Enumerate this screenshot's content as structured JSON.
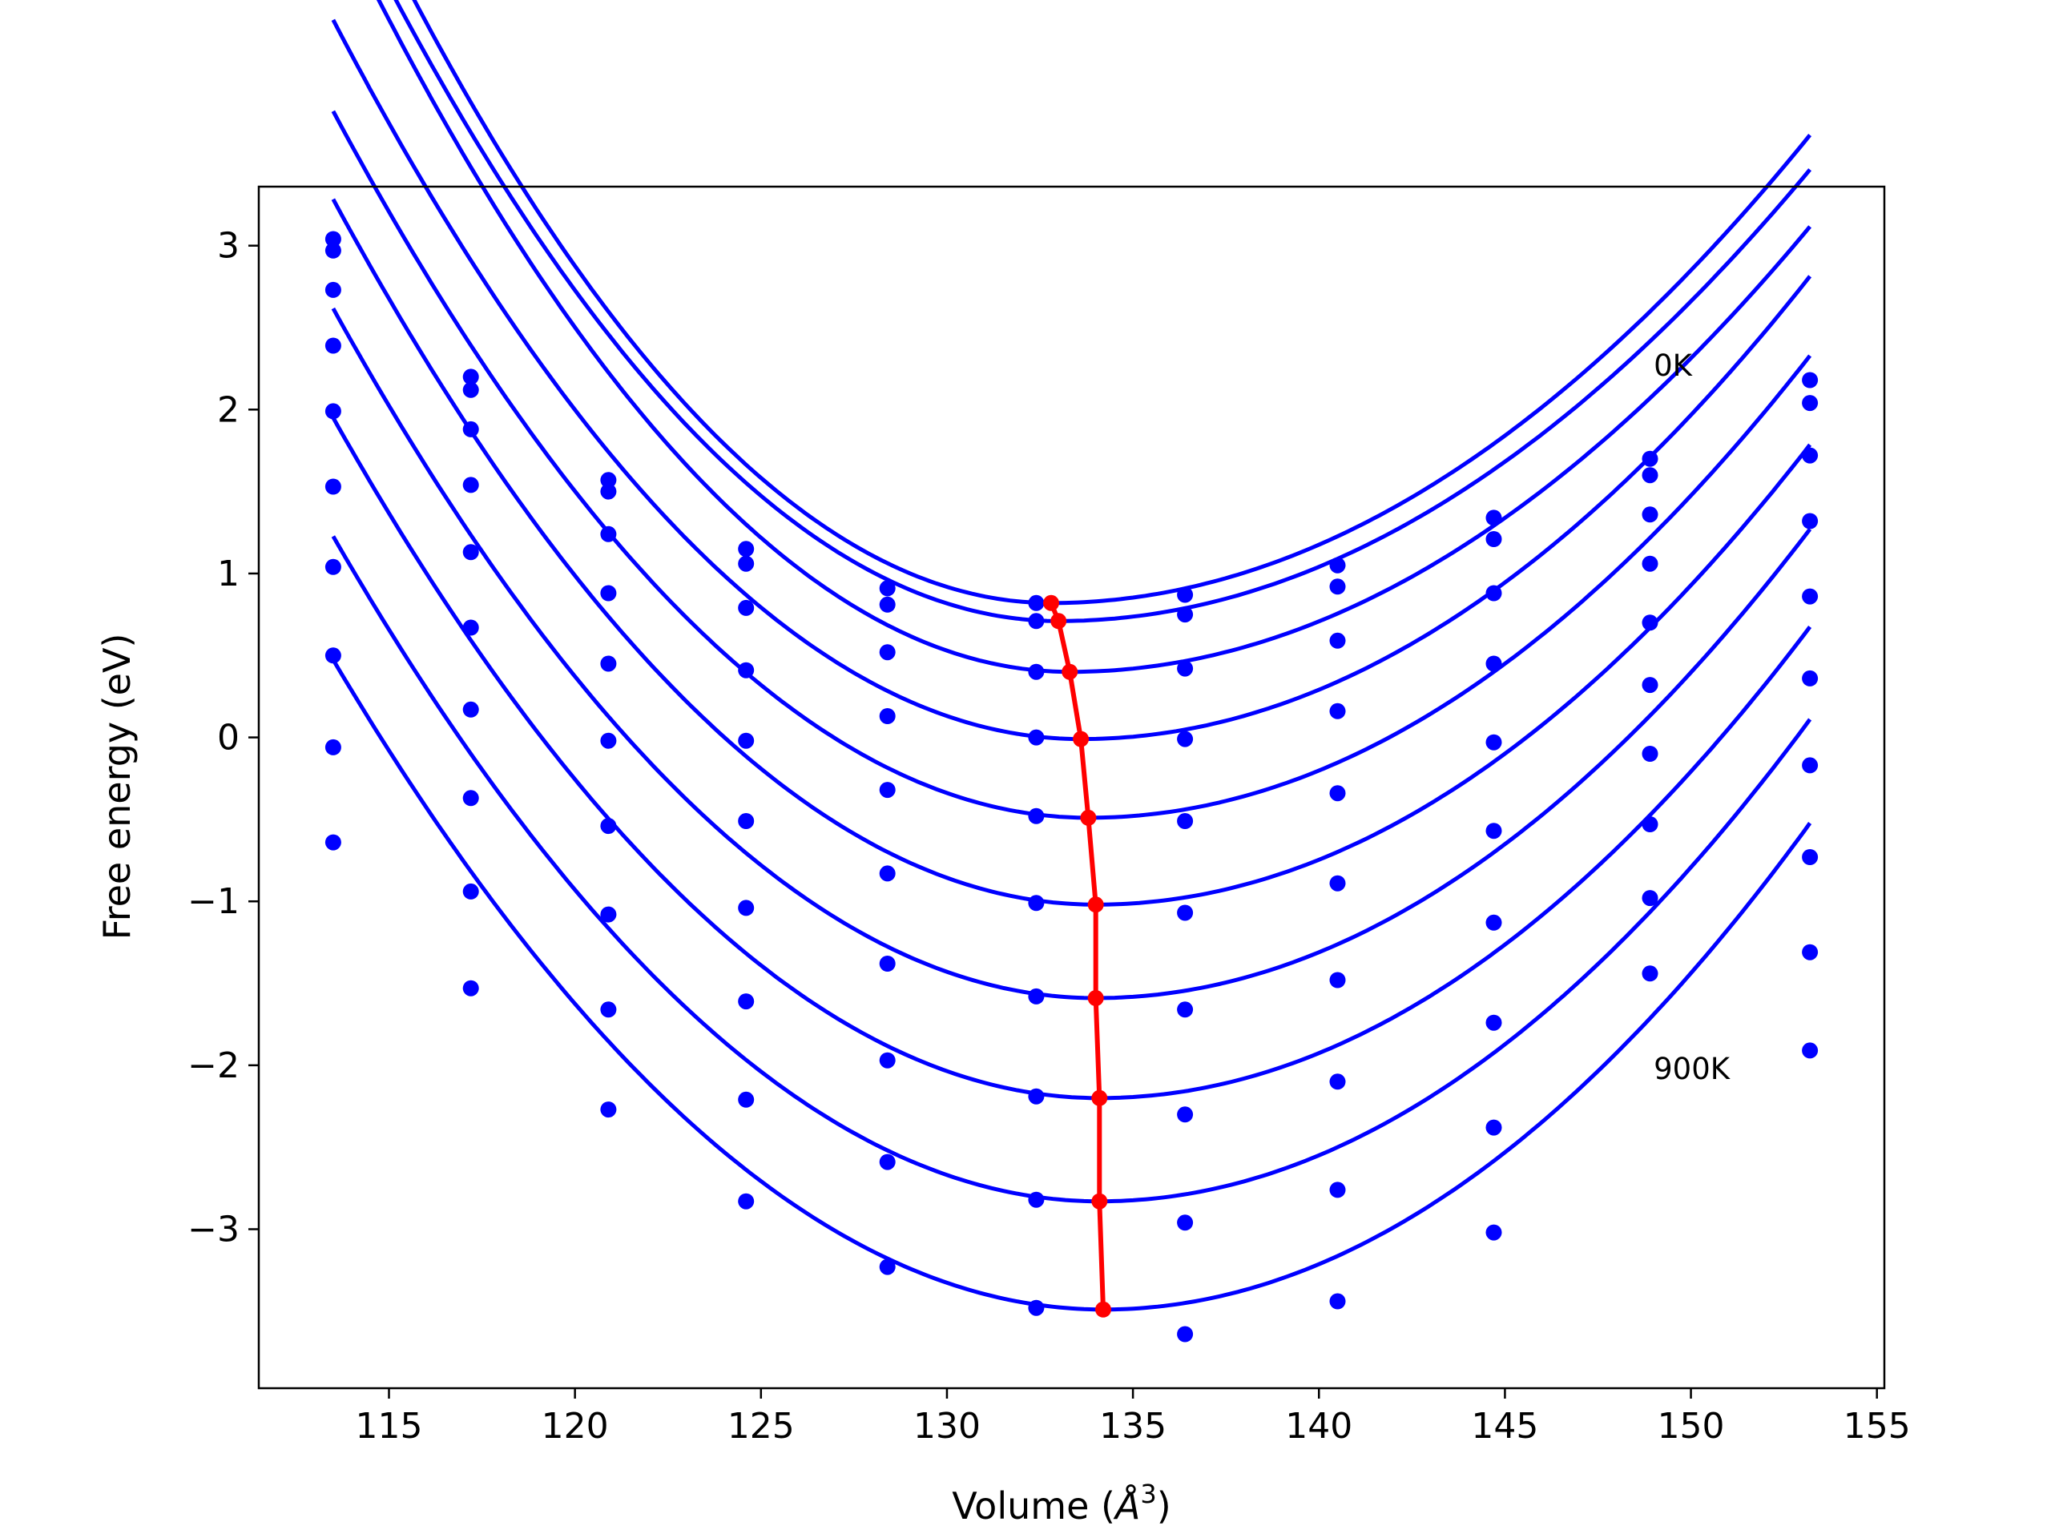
{
  "chart_data": {
    "type": "line",
    "title": "",
    "xlabel": "Volume (Å³)",
    "xlabel_main": "Volume (",
    "xlabel_unit": "Å",
    "xlabel_exp": "3",
    "xlabel_close": ")",
    "ylabel": "Free energy (eV)",
    "xlim": [
      111.5,
      155.2
    ],
    "ylim": [
      -3.97,
      3.36
    ],
    "xticks": [
      115,
      120,
      125,
      130,
      135,
      140,
      145,
      150,
      155
    ],
    "xtick_labels": [
      "115",
      "120",
      "125",
      "130",
      "135",
      "140",
      "145",
      "150",
      "155"
    ],
    "yticks": [
      -3,
      -2,
      -1,
      0,
      1,
      2,
      3
    ],
    "ytick_labels": [
      "−3",
      "−2",
      "−1",
      "0",
      "1",
      "2",
      "3"
    ],
    "grid": false,
    "annotations": [
      {
        "text": "0K",
        "x": 149.0,
        "y": 2.27
      },
      {
        "text": "900K",
        "x": 149.0,
        "y": -2.02
      }
    ],
    "colors": {
      "fit": "#0000ff",
      "points": "#0000ff",
      "minimum_path": "#ff0000"
    },
    "volumes": [
      113.5,
      117.2,
      120.9,
      124.6,
      128.4,
      132.4,
      136.4,
      140.5,
      144.7,
      148.9,
      153.2
    ],
    "series": [
      {
        "label": "0K",
        "fit": {
          "v_min": 132.8,
          "e_min": 0.82,
          "a_left": 0.01255,
          "a_right": 0.00686
        },
        "points": [
          3.04,
          2.2,
          1.57,
          1.15,
          0.91,
          0.82,
          0.87,
          1.05,
          1.34,
          1.7,
          2.18
        ]
      },
      {
        "fit": {
          "v_min": 133.0,
          "e_min": 0.71,
          "a_left": 0.01194,
          "a_right": 0.00675
        },
        "points": [
          2.97,
          2.12,
          1.5,
          1.06,
          0.81,
          0.71,
          0.75,
          0.92,
          1.21,
          1.6,
          2.04
        ]
      },
      {
        "fit": {
          "v_min": 133.3,
          "e_min": 0.4,
          "a_left": 0.01188,
          "a_right": 0.00686
        },
        "points": [
          2.73,
          1.88,
          1.24,
          0.79,
          0.52,
          0.4,
          0.42,
          0.59,
          0.88,
          1.36,
          1.72
        ]
      },
      {
        "fit": {
          "v_min": 133.6,
          "e_min": -0.01,
          "a_left": 0.01086,
          "a_right": 0.00735
        },
        "points": [
          2.39,
          1.54,
          0.88,
          0.41,
          0.13,
          0.0,
          -0.01,
          0.16,
          0.45,
          1.06,
          1.32
        ]
      },
      {
        "fit": {
          "v_min": 133.8,
          "e_min": -0.49,
          "a_left": 0.01046,
          "a_right": 0.00749
        },
        "points": [
          1.99,
          1.13,
          0.45,
          -0.02,
          -0.32,
          -0.48,
          -0.51,
          -0.34,
          -0.03,
          0.7,
          0.86
        ]
      },
      {
        "fit": {
          "v_min": 134.0,
          "e_min": -1.02,
          "a_left": 0.01024,
          "a_right": 0.00761
        },
        "points": [
          1.53,
          0.67,
          -0.02,
          -0.51,
          -0.83,
          -1.01,
          -1.07,
          -0.89,
          -0.57,
          0.32,
          0.36
        ]
      },
      {
        "fit": {
          "v_min": 134.0,
          "e_min": -1.59,
          "a_left": 0.01001,
          "a_right": 0.00776
        },
        "points": [
          1.04,
          0.17,
          -0.54,
          -1.04,
          -1.38,
          -1.58,
          -1.66,
          -1.48,
          -1.13,
          -0.1,
          -0.17
        ]
      },
      {
        "fit": {
          "v_min": 134.1,
          "e_min": -2.2,
          "a_left": 0.00978,
          "a_right": 0.00788
        },
        "points": [
          0.5,
          -0.37,
          -1.08,
          -1.61,
          -1.97,
          -2.19,
          -2.3,
          -2.1,
          -1.74,
          -0.53,
          -0.73
        ]
      },
      {
        "fit": {
          "v_min": 134.1,
          "e_min": -2.83,
          "a_left": 0.00956,
          "a_right": 0.00806
        },
        "points": [
          -0.06,
          -0.94,
          -1.66,
          -2.21,
          -2.59,
          -2.82,
          -2.96,
          -2.76,
          -2.38,
          -0.98,
          -1.31
        ]
      },
      {
        "label": "900K",
        "fit": {
          "v_min": 134.2,
          "e_min": -3.49,
          "a_left": 0.00925,
          "a_right": 0.00822
        },
        "points": [
          -0.64,
          -1.53,
          -2.27,
          -2.83,
          -3.23,
          -3.48,
          -3.64,
          -3.44,
          -3.02,
          -1.44,
          -1.91
        ]
      }
    ],
    "minimum_path": {
      "x": [
        132.8,
        133.0,
        133.3,
        133.6,
        133.8,
        134.0,
        134.0,
        134.1,
        134.1,
        134.2
      ],
      "y": [
        0.82,
        0.71,
        0.4,
        -0.01,
        -0.49,
        -1.02,
        -1.59,
        -2.2,
        -2.83,
        -3.49
      ]
    }
  }
}
